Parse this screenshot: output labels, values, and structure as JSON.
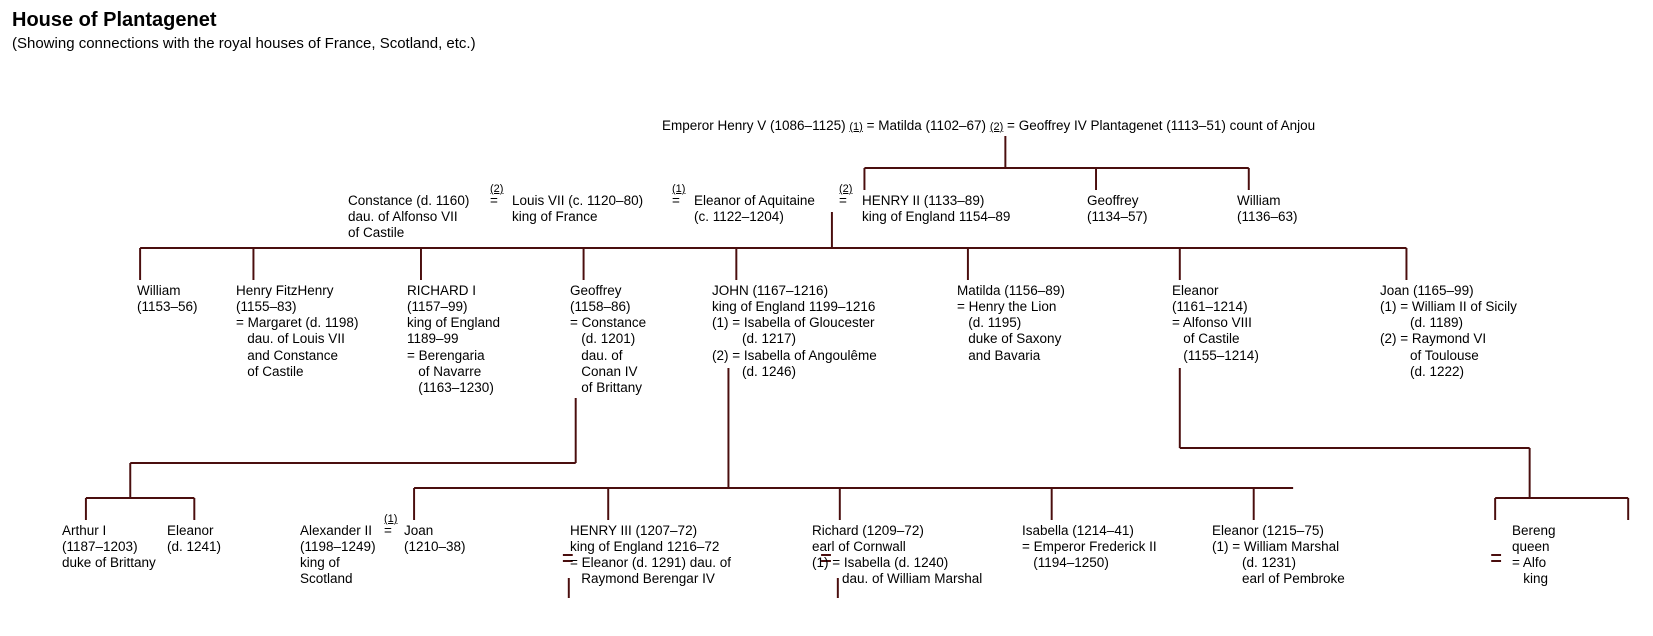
{
  "title": "House of Plantagenet",
  "subtitle": "(Showing connections with the royal houses of France, Scotland, etc.)",
  "line_color": "#4a0e0e",
  "line_width": 2,
  "gen0": {
    "henryV": "Emperor Henry V (1086–1125)",
    "m1": "(1)",
    "matilda": "Matilda (1102–67)",
    "m2": "(2)",
    "geoffreyIV": "Geoffrey IV Plantagenet (1113–51) count of Anjou"
  },
  "gen1": {
    "constance": {
      "l1": "Constance (d. 1160)",
      "l2": "dau. of Alfonso VII",
      "l3": "of Castile"
    },
    "m2a": "(2)",
    "louisVII": {
      "l1": "Louis VII (c. 1120–80)",
      "l2": "king of France"
    },
    "m1a": "(1)",
    "eleanorAq": {
      "l1": "Eleanor of Aquitaine",
      "l2": "(c. 1122–1204)"
    },
    "m2b": "(2)",
    "henryII": {
      "l1": "HENRY II (1133–89)",
      "l2": "king of England 1154–89"
    },
    "geoffrey": {
      "l1": "Geoffrey",
      "l2": "(1134–57)"
    },
    "william": {
      "l1": "William",
      "l2": "(1136–63)"
    }
  },
  "gen2": {
    "william": {
      "l1": "William",
      "l2": "(1153–56)"
    },
    "henryFitz": {
      "l1": "Henry FitzHenry",
      "l2": "(1155–83)",
      "l3": "= Margaret (d. 1198)",
      "l4": "   dau. of Louis VII",
      "l5": "   and Constance",
      "l6": "   of Castile"
    },
    "richardI": {
      "l1": "RICHARD I",
      "l2": "(1157–99)",
      "l3": "king of England",
      "l4": "1189–99",
      "l5": "= Berengaria",
      "l6": "   of Navarre",
      "l7": "   (1163–1230)"
    },
    "geoffrey": {
      "l1": "Geoffrey",
      "l2": "(1158–86)",
      "l3": "= Constance",
      "l4": "   (d. 1201)",
      "l5": "   dau. of",
      "l6": "   Conan IV",
      "l7": "   of Brittany"
    },
    "john": {
      "l1": "JOHN (1167–1216)",
      "l2": "king of England 1199–1216",
      "l3": "(1) = Isabella of Gloucester",
      "l4": "        (d. 1217)",
      "l5": "(2) = Isabella of Angoulême",
      "l6": "        (d. 1246)"
    },
    "matilda": {
      "l1": "Matilda (1156–89)",
      "l2": "= Henry the Lion",
      "l3": "   (d. 1195)",
      "l4": "   duke of Saxony",
      "l5": "   and Bavaria"
    },
    "eleanor": {
      "l1": "Eleanor",
      "l2": "(1161–1214)",
      "l3": "= Alfonso VIII",
      "l4": "   of Castile",
      "l5": "   (1155–1214)"
    },
    "joan": {
      "l1": "Joan (1165–99)",
      "l2": "(1) = William II of Sicily",
      "l3": "        (d. 1189)",
      "l4": "(2) = Raymond VI",
      "l5": "        of Toulouse",
      "l6": "        (d. 1222)"
    }
  },
  "gen3": {
    "arthur": {
      "l1": "Arthur I",
      "l2": "(1187–1203)",
      "l3": "duke of Brittany"
    },
    "eleanorB": {
      "l1": "Eleanor",
      "l2": "(d. 1241)"
    },
    "alexanderII": {
      "l1": "Alexander II",
      "l2": "(1198–1249)",
      "l3": "king of",
      "l4": "Scotland"
    },
    "m1c": "(1)",
    "joan2": {
      "l1": "Joan",
      "l2": "(1210–38)"
    },
    "henryIII": {
      "l1": "HENRY III (1207–72)",
      "l2": "king of England 1216–72",
      "l3": "= Eleanor (d. 1291) dau. of",
      "l4": "   Raymond Berengar IV"
    },
    "richardC": {
      "l1": "Richard (1209–72)",
      "l2": "earl of Cornwall",
      "l3": "(1) = Isabella (d. 1240)",
      "l4": "        dau. of William Marshal"
    },
    "isabella": {
      "l1": "Isabella (1214–41)",
      "l2": "= Emperor Frederick II",
      "l3": "   (1194–1250)"
    },
    "eleanorP": {
      "l1": "Eleanor (1215–75)",
      "l2": "(1) = William Marshal",
      "l3": "        (d. 1231)",
      "l4": "        earl of Pembroke"
    },
    "bereng": {
      "l1": "Bereng",
      "l2": "queen",
      "l3": "= Alfo",
      "l4": "   king"
    }
  }
}
